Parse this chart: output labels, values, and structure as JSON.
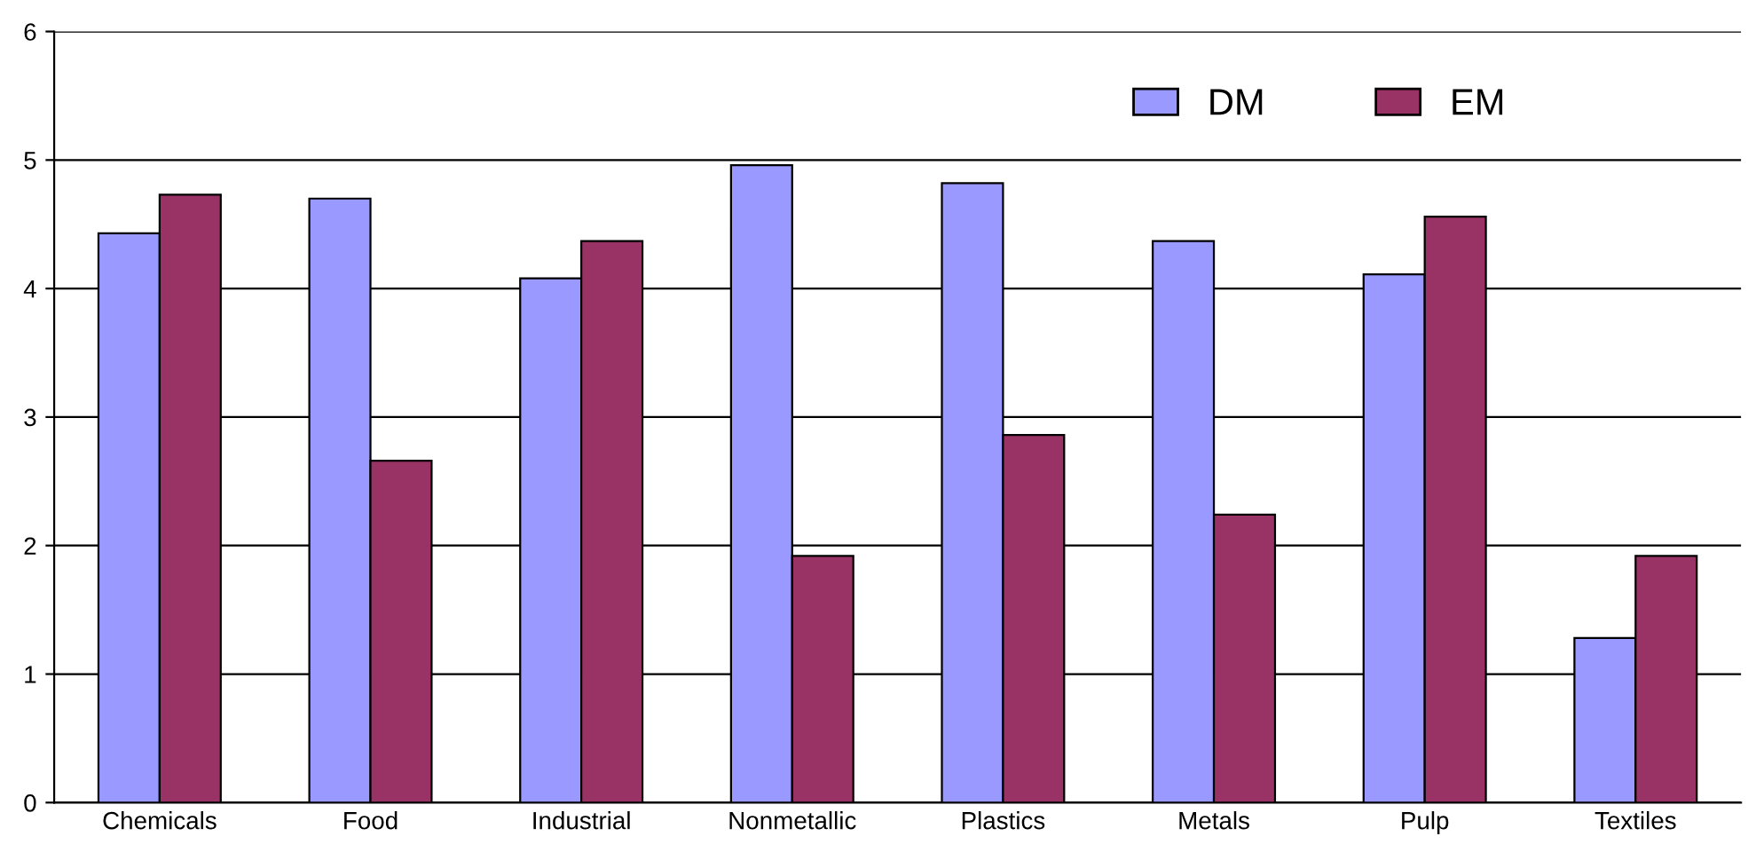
{
  "chart_data": {
    "type": "bar",
    "categories": [
      "Chemicals",
      "Food",
      "Industrial",
      "Nonmetallic",
      "Plastics",
      "Metals",
      "Pulp",
      "Textiles"
    ],
    "series": [
      {
        "name": "DM",
        "color": "#9999ff",
        "values": [
          4.43,
          4.7,
          4.08,
          4.96,
          4.82,
          4.37,
          4.11,
          1.28
        ]
      },
      {
        "name": "EM",
        "color": "#993366",
        "values": [
          4.73,
          2.66,
          4.37,
          1.92,
          2.86,
          2.24,
          4.56,
          1.92
        ]
      }
    ],
    "ylim": [
      0,
      6
    ],
    "yticks": [
      0,
      1,
      2,
      3,
      4,
      5,
      6
    ],
    "grid": "y",
    "legend": "top right"
  }
}
